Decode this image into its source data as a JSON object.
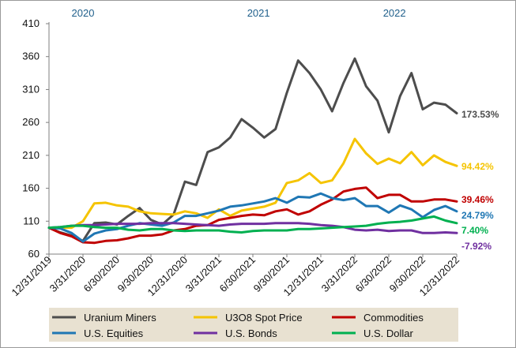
{
  "chart_data": {
    "type": "line",
    "ylim": [
      60,
      410
    ],
    "y_ticks": [
      60,
      110,
      160,
      210,
      260,
      310,
      360,
      410
    ],
    "x_tick_labels": [
      "12/31/2019",
      "3/31/2020",
      "6/30/2020",
      "9/30/2020",
      "12/31/2020",
      "3/31/2021",
      "6/30/2021",
      "9/30/2021",
      "12/31/2021",
      "3/31/2022",
      "6/30/2022",
      "9/30/2022",
      "12/31/2022"
    ],
    "year_labels": [
      {
        "text": "2020",
        "at_month": 3
      },
      {
        "text": "2021",
        "at_month": 18.5
      },
      {
        "text": "2022",
        "at_month": 30.5
      }
    ],
    "x_months": [
      0,
      1,
      2,
      3,
      4,
      5,
      6,
      7,
      8,
      9,
      10,
      11,
      12,
      13,
      14,
      15,
      16,
      17,
      18,
      19,
      20,
      21,
      22,
      23,
      24,
      25,
      26,
      27,
      28,
      29,
      30,
      31,
      32,
      33,
      34,
      35,
      36
    ],
    "grid": false,
    "legend_position": "bottom",
    "series": [
      {
        "name": "Uranium Miners",
        "color": "#4d4d4d",
        "end_label": "173.53%",
        "values": [
          100,
          93,
          88,
          80,
          107,
          108,
          105,
          118,
          130,
          112,
          105,
          120,
          170,
          165,
          215,
          222,
          237,
          265,
          252,
          237,
          250,
          305,
          354,
          335,
          310,
          277,
          320,
          357,
          315,
          293,
          245,
          300,
          335,
          280,
          290,
          287,
          274
        ]
      },
      {
        "name": "U3O8 Spot Price",
        "color": "#f5c400",
        "end_label": "94.42%",
        "values": [
          100,
          100,
          100,
          110,
          137,
          138,
          134,
          132,
          125,
          122,
          121,
          120,
          125,
          122,
          115,
          128,
          118,
          126,
          129,
          132,
          138,
          168,
          172,
          183,
          168,
          172,
          198,
          235,
          213,
          197,
          205,
          198,
          215,
          195,
          210,
          200,
          194
        ]
      },
      {
        "name": "Commodities",
        "color": "#c00000",
        "end_label": "39.46%",
        "values": [
          100,
          92,
          87,
          78,
          77,
          80,
          81,
          84,
          88,
          88,
          90,
          96,
          98,
          103,
          104,
          112,
          115,
          118,
          120,
          119,
          125,
          128,
          120,
          125,
          135,
          143,
          155,
          159,
          161,
          145,
          150,
          150,
          140,
          140,
          143,
          143,
          140
        ]
      },
      {
        "name": "U.S. Equities",
        "color": "#1f77b4",
        "end_label": "24.79%",
        "values": [
          100,
          99,
          92,
          79,
          91,
          96,
          98,
          103,
          107,
          105,
          103,
          108,
          118,
          118,
          122,
          126,
          132,
          134,
          137,
          140,
          145,
          138,
          147,
          146,
          152,
          145,
          142,
          145,
          133,
          133,
          123,
          134,
          128,
          116,
          127,
          133,
          125
        ]
      },
      {
        "name": "U.S. Bonds",
        "color": "#7030a0",
        "end_label": "-7.92%",
        "values": [
          100,
          101,
          103,
          104,
          104,
          105,
          106,
          106,
          106,
          107,
          107,
          107,
          106,
          105,
          104,
          103,
          105,
          106,
          106,
          106,
          107,
          107,
          107,
          106,
          104,
          103,
          101,
          97,
          96,
          97,
          95,
          96,
          96,
          92,
          92,
          93,
          92
        ]
      },
      {
        "name": "U.S. Dollar",
        "color": "#00b050",
        "end_label": "7.40%",
        "values": [
          100,
          101,
          103,
          103,
          101,
          100,
          100,
          97,
          96,
          98,
          98,
          96,
          95,
          96,
          96,
          96,
          94,
          93,
          95,
          96,
          96,
          96,
          98,
          98,
          99,
          100,
          101,
          102,
          103,
          106,
          108,
          109,
          111,
          114,
          117,
          111,
          107
        ]
      }
    ]
  }
}
